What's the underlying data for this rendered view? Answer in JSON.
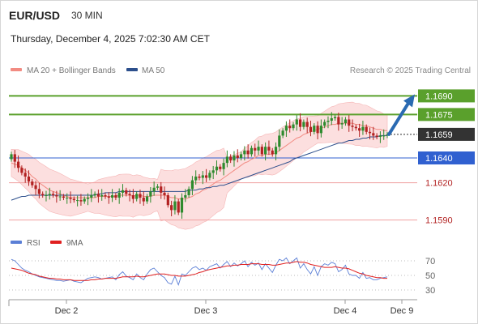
{
  "header": {
    "symbol": "EUR/USD",
    "timeframe": "30 MIN",
    "datetime": "Thursday, December 4, 2025 7:02:30 AM CET"
  },
  "legend": {
    "ma20_label": "MA 20 + Bollinger Bands",
    "ma50_label": "MA 50",
    "research": "Research © 2025 Trading Central",
    "ma20_color": "#f28b82",
    "ma50_color": "#2c4f8c"
  },
  "rsi_legend": {
    "rsi_label": "RSI",
    "ma9_label": "9MA",
    "rsi_color": "#5b7fd6",
    "ma9_color": "#e02020"
  },
  "colors": {
    "up": "#2e8b2e",
    "down": "#b22222",
    "resistance": "#5aa02c",
    "support": "#3060d0",
    "price_tag": "#333333",
    "arrow": "#2a6ab2",
    "band_fill": "#fbd7d7"
  },
  "chart_data": {
    "type": "candlestick",
    "x_ticks": [
      "Dec 2",
      "Dec 3",
      "Dec 4",
      "Dec 9"
    ],
    "y_range": [
      1.1578,
      1.1702
    ],
    "levels": [
      {
        "label": "1.1690",
        "value": 1.169,
        "kind": "resistance"
      },
      {
        "label": "1.1675",
        "value": 1.1675,
        "kind": "resistance"
      },
      {
        "label": "1.1659",
        "value": 1.1659,
        "kind": "current"
      },
      {
        "label": "1.1640",
        "value": 1.164,
        "kind": "support"
      },
      {
        "label": "1.1620",
        "value": 1.162,
        "kind": "support_minor"
      },
      {
        "label": "1.1590",
        "value": 1.159,
        "kind": "support_minor"
      }
    ],
    "close": [
      1.1643,
      1.1637,
      1.1632,
      1.1628,
      1.1625,
      1.1621,
      1.1618,
      1.1615,
      1.1611,
      1.161,
      1.161,
      1.1611,
      1.161,
      1.1609,
      1.1609,
      1.1608,
      1.1608,
      1.1607,
      1.1606,
      1.1606,
      1.1605,
      1.1607,
      1.1608,
      1.161,
      1.1611,
      1.1609,
      1.161,
      1.1609,
      1.1608,
      1.161,
      1.1608,
      1.1612,
      1.1614,
      1.1611,
      1.161,
      1.1607,
      1.1611,
      1.1608,
      1.1605,
      1.1609,
      1.1613,
      1.1616,
      1.1617,
      1.1612,
      1.161,
      1.1602,
      1.1598,
      1.1605,
      1.1596,
      1.1608,
      1.161,
      1.1615,
      1.1622,
      1.1625,
      1.1624,
      1.1626,
      1.1624,
      1.1628,
      1.163,
      1.1633,
      1.1631,
      1.1636,
      1.1641,
      1.1638,
      1.1642,
      1.164,
      1.1643,
      1.1646,
      1.1643,
      1.1648,
      1.1646,
      1.1649,
      1.1643,
      1.1649,
      1.1646,
      1.1643,
      1.1649,
      1.1658,
      1.1662,
      1.1666,
      1.1664,
      1.1667,
      1.1671,
      1.1665,
      1.1669,
      1.1665,
      1.1661,
      1.1666,
      1.166,
      1.1666,
      1.1669,
      1.167,
      1.1672,
      1.1673,
      1.1667,
      1.1668,
      1.1671,
      1.1666,
      1.1665,
      1.1664,
      1.1662,
      1.1665,
      1.1661,
      1.166,
      1.1658,
      1.1657,
      1.1658,
      1.1658,
      1.1659
    ],
    "ma20": [
      1.1636,
      1.1635,
      1.1634,
      1.1632,
      1.163,
      1.1628,
      1.1625,
      1.1623,
      1.162,
      1.1618,
      1.1616,
      1.1614,
      1.1613,
      1.1612,
      1.1611,
      1.161,
      1.1609,
      1.1608,
      1.1608,
      1.1608,
      1.1608,
      1.1608,
      1.1608,
      1.1608,
      1.1608,
      1.1609,
      1.1609,
      1.1609,
      1.1609,
      1.1609,
      1.1609,
      1.161,
      1.161,
      1.161,
      1.161,
      1.1609,
      1.161,
      1.161,
      1.1609,
      1.1609,
      1.1609,
      1.161,
      1.161,
      1.161,
      1.161,
      1.1609,
      1.1608,
      1.1608,
      1.1607,
      1.1607,
      1.1607,
      1.1608,
      1.1609,
      1.1611,
      1.1612,
      1.1614,
      1.1615,
      1.1617,
      1.1619,
      1.1621,
      1.1622,
      1.1624,
      1.1626,
      1.1628,
      1.163,
      1.1632,
      1.1634,
      1.1636,
      1.1637,
      1.1639,
      1.164,
      1.1642,
      1.1642,
      1.1643,
      1.1643,
      1.1643,
      1.1644,
      1.1646,
      1.1648,
      1.165,
      1.1652,
      1.1654,
      1.1656,
      1.1657,
      1.1659,
      1.166,
      1.1661,
      1.1662,
      1.1663,
      1.1664,
      1.1665,
      1.1666,
      1.1667,
      1.1667,
      1.1668,
      1.1668,
      1.1668,
      1.1668,
      1.1668,
      1.1667,
      1.1667,
      1.1666,
      1.1666,
      1.1665,
      1.1664,
      1.1663,
      1.1663,
      1.1662,
      1.1662
    ],
    "ma50": [
      1.1606,
      1.1607,
      1.1608,
      1.1609,
      1.1609,
      1.161,
      1.161,
      1.161,
      1.161,
      1.161,
      1.161,
      1.161,
      1.161,
      1.161,
      1.161,
      1.161,
      1.161,
      1.161,
      1.161,
      1.161,
      1.161,
      1.161,
      1.161,
      1.161,
      1.161,
      1.1611,
      1.1611,
      1.1612,
      1.1612,
      1.1612,
      1.1612,
      1.1613,
      1.1613,
      1.1613,
      1.1613,
      1.1613,
      1.1613,
      1.1613,
      1.1613,
      1.1613,
      1.1613,
      1.1613,
      1.1613,
      1.1613,
      1.1613,
      1.1613,
      1.1613,
      1.1613,
      1.1613,
      1.1613,
      1.1613,
      1.1614,
      1.1614,
      1.1614,
      1.1615,
      1.1615,
      1.1616,
      1.1616,
      1.1617,
      1.1617,
      1.1618,
      1.1618,
      1.1619,
      1.162,
      1.1621,
      1.1622,
      1.1623,
      1.1624,
      1.1625,
      1.1626,
      1.1627,
      1.1628,
      1.1629,
      1.163,
      1.1631,
      1.1632,
      1.1633,
      1.1634,
      1.1635,
      1.1636,
      1.1637,
      1.1639,
      1.164,
      1.1641,
      1.1642,
      1.1643,
      1.1644,
      1.1645,
      1.1646,
      1.1647,
      1.1648,
      1.1649,
      1.165,
      1.1651,
      1.1652,
      1.1652,
      1.1653,
      1.1654,
      1.1654,
      1.1655,
      1.1655,
      1.1656,
      1.1656,
      1.1657,
      1.1657,
      1.1657,
      1.1658,
      1.1658,
      1.1658
    ],
    "rsi": {
      "y_ticks": [
        70,
        50,
        30
      ],
      "y_range": [
        20,
        80
      ],
      "rsi": [
        72,
        70,
        65,
        60,
        57,
        55,
        52,
        50,
        48,
        47,
        46,
        45,
        44,
        43,
        43,
        42,
        43,
        44,
        42,
        41,
        40,
        43,
        46,
        47,
        48,
        47,
        45,
        46,
        47,
        48,
        44,
        51,
        55,
        49,
        47,
        44,
        52,
        47,
        44,
        52,
        58,
        60,
        55,
        50,
        47,
        40,
        38,
        49,
        37,
        52,
        50,
        55,
        60,
        62,
        58,
        60,
        57,
        62,
        64,
        66,
        60,
        65,
        69,
        62,
        67,
        63,
        66,
        70,
        62,
        68,
        64,
        67,
        58,
        66,
        60,
        54,
        64,
        72,
        70,
        74,
        66,
        70,
        74,
        60,
        66,
        58,
        52,
        62,
        50,
        62,
        66,
        64,
        68,
        66,
        55,
        58,
        64,
        52,
        50,
        50,
        46,
        54,
        46,
        47,
        44,
        44,
        46,
        47,
        48
      ],
      "ma9": [
        60,
        59,
        58,
        57,
        55,
        53,
        52,
        51,
        49,
        48,
        47,
        46,
        46,
        45,
        45,
        44,
        44,
        44,
        43,
        43,
        43,
        43,
        43,
        44,
        44,
        45,
        45,
        46,
        46,
        46,
        46,
        47,
        48,
        48,
        48,
        48,
        49,
        48,
        48,
        49,
        50,
        51,
        52,
        52,
        52,
        51,
        50,
        50,
        49,
        49,
        49,
        50,
        51,
        52,
        54,
        55,
        57,
        58,
        59,
        60,
        61,
        62,
        63,
        63,
        64,
        64,
        65,
        65,
        65,
        66,
        66,
        66,
        65,
        65,
        65,
        64,
        64,
        65,
        66,
        67,
        67,
        68,
        69,
        68,
        68,
        67,
        65,
        64,
        63,
        62,
        61,
        61,
        61,
        62,
        61,
        60,
        60,
        59,
        57,
        55,
        53,
        52,
        50,
        49,
        48,
        47,
        47,
        46,
        46
      ]
    }
  }
}
